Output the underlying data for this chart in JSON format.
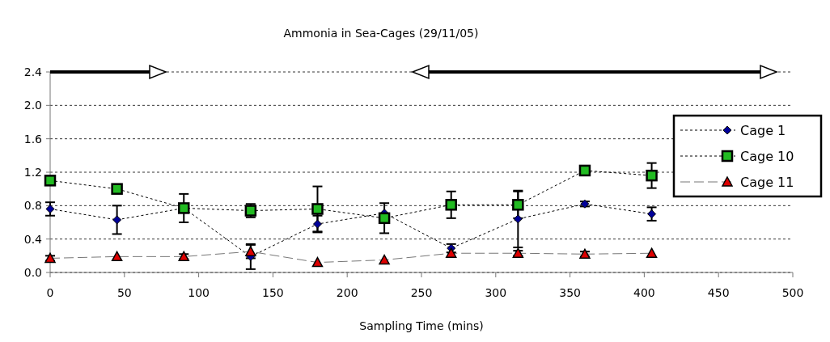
{
  "chart_data": {
    "type": "line",
    "title": "Ammonia in Sea-Cages (29/11/05)",
    "xlabel": "Sampling Time (mins)",
    "x": [
      0,
      45,
      90,
      135,
      180,
      225,
      270,
      315,
      360,
      405
    ],
    "xlim": [
      0,
      500
    ],
    "xticks": [
      0,
      50,
      100,
      150,
      200,
      250,
      300,
      350,
      400,
      450,
      500
    ],
    "ylim": [
      0,
      2.4
    ],
    "yticks": [
      {
        "value": 0,
        "label": "0.0"
      },
      0.4,
      0.8,
      1.2,
      1.6,
      {
        "value": 2,
        "label": "2.0"
      },
      2.4
    ],
    "grid": "y",
    "legend": "right",
    "series": [
      {
        "name": "Cage 1",
        "color": "#000099",
        "marker": "diamond",
        "line_style": "dotted",
        "values": [
          0.76,
          0.63,
          0.77,
          0.19,
          0.58,
          0.71,
          0.29,
          0.64,
          0.82,
          0.7
        ],
        "errors": [
          0.08,
          0.17,
          null,
          0.15,
          0.1,
          null,
          0.05,
          0.34,
          0.03,
          0.08
        ]
      },
      {
        "name": "Cage 10",
        "color": "#22bb22",
        "marker": "square",
        "line_style": "dotted",
        "values": [
          1.1,
          1.0,
          0.77,
          0.74,
          0.76,
          0.65,
          0.81,
          0.81,
          1.22,
          1.16
        ],
        "errors": [
          null,
          null,
          0.17,
          0.08,
          0.27,
          0.18,
          0.16,
          0.16,
          null,
          0.15
        ]
      },
      {
        "name": "Cage 11",
        "color": "#dd0000",
        "marker": "triangle",
        "line_style": "dashed",
        "values": [
          0.17,
          0.19,
          0.19,
          0.25,
          0.12,
          0.15,
          0.23,
          0.23,
          0.22,
          0.23
        ],
        "errors": [
          0.03,
          null,
          0.03,
          0.08,
          null,
          null,
          null,
          0.03,
          0.03,
          null
        ]
      }
    ]
  }
}
